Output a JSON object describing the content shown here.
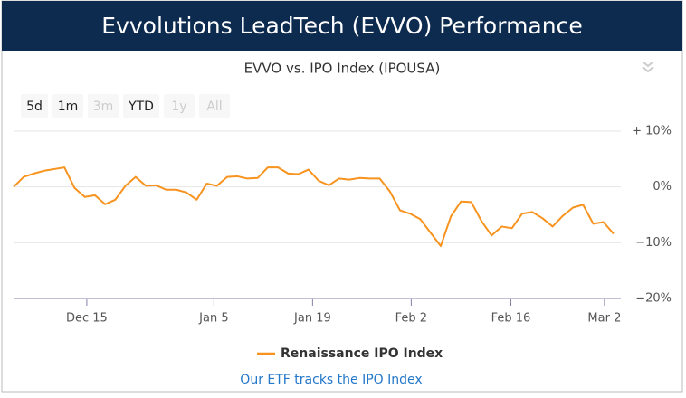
{
  "header": {
    "title": "Evvolutions LeadTech (EVVO) Performance"
  },
  "range_buttons": [
    {
      "label": "5d",
      "enabled": true
    },
    {
      "label": "1m",
      "enabled": true
    },
    {
      "label": "3m",
      "enabled": false
    },
    {
      "label": "YTD",
      "enabled": true
    },
    {
      "label": "1y",
      "enabled": false
    },
    {
      "label": "All",
      "enabled": false
    }
  ],
  "chart_data": {
    "type": "line",
    "title": "EVVO vs. IPO Index (IPOUSA)",
    "xlim": [
      0,
      59
    ],
    "xticks": [
      {
        "value": 7.2,
        "label": "Dec 15"
      },
      {
        "value": 19.7,
        "label": "Jan 5"
      },
      {
        "value": 29.4,
        "label": "Jan 19"
      },
      {
        "value": 39.1,
        "label": "Feb 2"
      },
      {
        "value": 48.9,
        "label": "Feb 16"
      },
      {
        "value": 58.1,
        "label": "Mar 2"
      }
    ],
    "ylim": [
      -20,
      10
    ],
    "yticks": [
      {
        "value": 10,
        "label": "+ 10%"
      },
      {
        "value": 0,
        "label": "0%"
      },
      {
        "value": -10,
        "label": "−10%"
      },
      {
        "value": -20,
        "label": "−20%"
      }
    ],
    "grid": true,
    "series": [
      {
        "name": "Renaissance IPO Index",
        "color": "#f7931e",
        "values": [
          0,
          1.8,
          2.4,
          2.9,
          3.2,
          3.5,
          -0.2,
          -1.8,
          -1.5,
          -3.1,
          -2.3,
          0.2,
          1.8,
          0.2,
          0.3,
          -0.5,
          -0.5,
          -1,
          -2.3,
          0.6,
          0.2,
          1.8,
          1.9,
          1.5,
          1.6,
          3.5,
          3.5,
          2.4,
          2.3,
          3.1,
          1.1,
          0.3,
          1.5,
          1.3,
          1.6,
          1.5,
          1.5,
          -0.8,
          -4.2,
          -4.8,
          -5.8,
          -8.2,
          -10.6,
          -5.3,
          -2.6,
          -2.7,
          -6.1,
          -8.7,
          -7.1,
          -7.4,
          -4.8,
          -4.5,
          -5.6,
          -7.1,
          -5.2,
          -3.7,
          -3.2,
          -6.6,
          -6.3,
          -8.4
        ]
      }
    ]
  },
  "link": "Our ETF tracks the IPO Index"
}
